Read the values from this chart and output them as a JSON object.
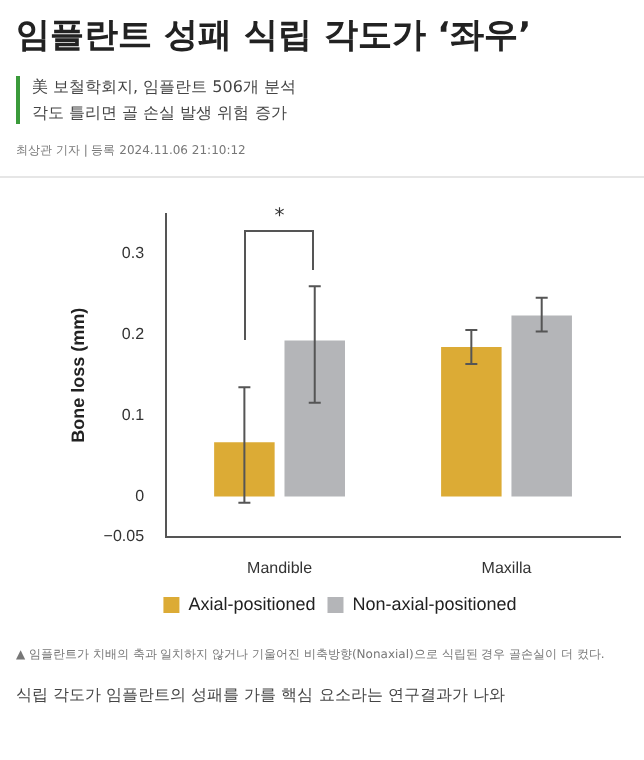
{
  "chart_data": {
    "type": "bar",
    "title": "임플란트 성패 식립 각도가 ‘좌우’",
    "subtitle": "美 보철학회지, 임플란트 506개 분석\n각도 틀리면 골 손실 발생 위험 증가",
    "ylabel": "Bone loss (mm)",
    "categories": [
      "Mandible",
      "Maxilla"
    ],
    "series": [
      {
        "name": "Axial-positioned",
        "color": "#dcab35",
        "values": [
          0.067,
          0.185
        ],
        "errors": [
          [
            -0.008,
            0.135
          ],
          [
            0.164,
            0.206
          ]
        ]
      },
      {
        "name": "Non-axial-positioned",
        "color": "#b4b5b8",
        "values": [
          0.193,
          0.224
        ],
        "errors": [
          [
            0.116,
            0.26
          ],
          [
            0.204,
            0.246
          ]
        ]
      }
    ],
    "ylim": [
      -0.05,
      0.35
    ],
    "yticks": [
      {
        "value": -0.05,
        "label": "−0.05"
      },
      0,
      0.1,
      0.2,
      0.3
    ],
    "grid": false,
    "legend": "bottom",
    "annotations": [
      "*",
      "최상관 기자 | 등록 2024.11.06 21:10:12",
      "▲ 임플란트가 치배의 축과 일치하지 않거나 기울어진 비축방향(Nonaxial)으로 식립된 경우 골손실이 더 컸다.",
      "식립 각도가 임플란트의 성패를 가를 핵심 요소라는 연구결과가 나와"
    ]
  }
}
